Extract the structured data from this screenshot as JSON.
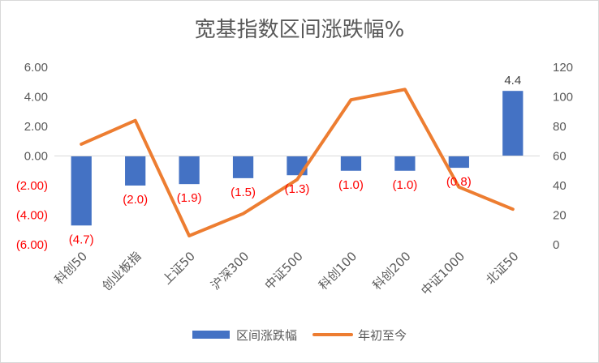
{
  "chart_data": {
    "type": "bar",
    "title": "宽基指数区间涨跌幅%",
    "categories": [
      "科创50",
      "创业板指",
      "上证50",
      "沪深300",
      "中证500",
      "科创100",
      "科创200",
      "中证1000",
      "北证50"
    ],
    "series": [
      {
        "name": "区间涨跌幅",
        "type": "bar",
        "axis": "left",
        "color": "#4472c4",
        "values": [
          -4.7,
          -2.0,
          -1.9,
          -1.5,
          -1.3,
          -1.0,
          -1.0,
          -0.8,
          4.4
        ],
        "labels": [
          "(4.7)",
          "(2.0)",
          "(1.9)",
          "(1.5)",
          "(1.3)",
          "(1.0)",
          "(1.0)",
          "(0.8)",
          "4.4"
        ]
      },
      {
        "name": "年初至今",
        "type": "line",
        "axis": "right",
        "color": "#ed7d31",
        "values": [
          68,
          84,
          6,
          21,
          44,
          98,
          105,
          39,
          24
        ]
      }
    ],
    "left_axis": {
      "ylim": [
        -6,
        6
      ],
      "ticks": [
        6,
        4,
        2,
        0,
        -2,
        -4,
        -6
      ],
      "tick_labels": [
        "6.00",
        "4.00",
        "2.00",
        "0.00",
        "(2.00)",
        "(4.00)",
        "(6.00)"
      ]
    },
    "right_axis": {
      "ylim": [
        0,
        120
      ],
      "ticks": [
        120,
        100,
        80,
        60,
        40,
        20,
        0
      ],
      "tick_labels": [
        "120",
        "100",
        "80",
        "60",
        "40",
        "20",
        "0"
      ]
    },
    "grid": false,
    "legend": "bottom",
    "negative_label_color": "#ff0000",
    "positive_label_color": "#404040"
  }
}
